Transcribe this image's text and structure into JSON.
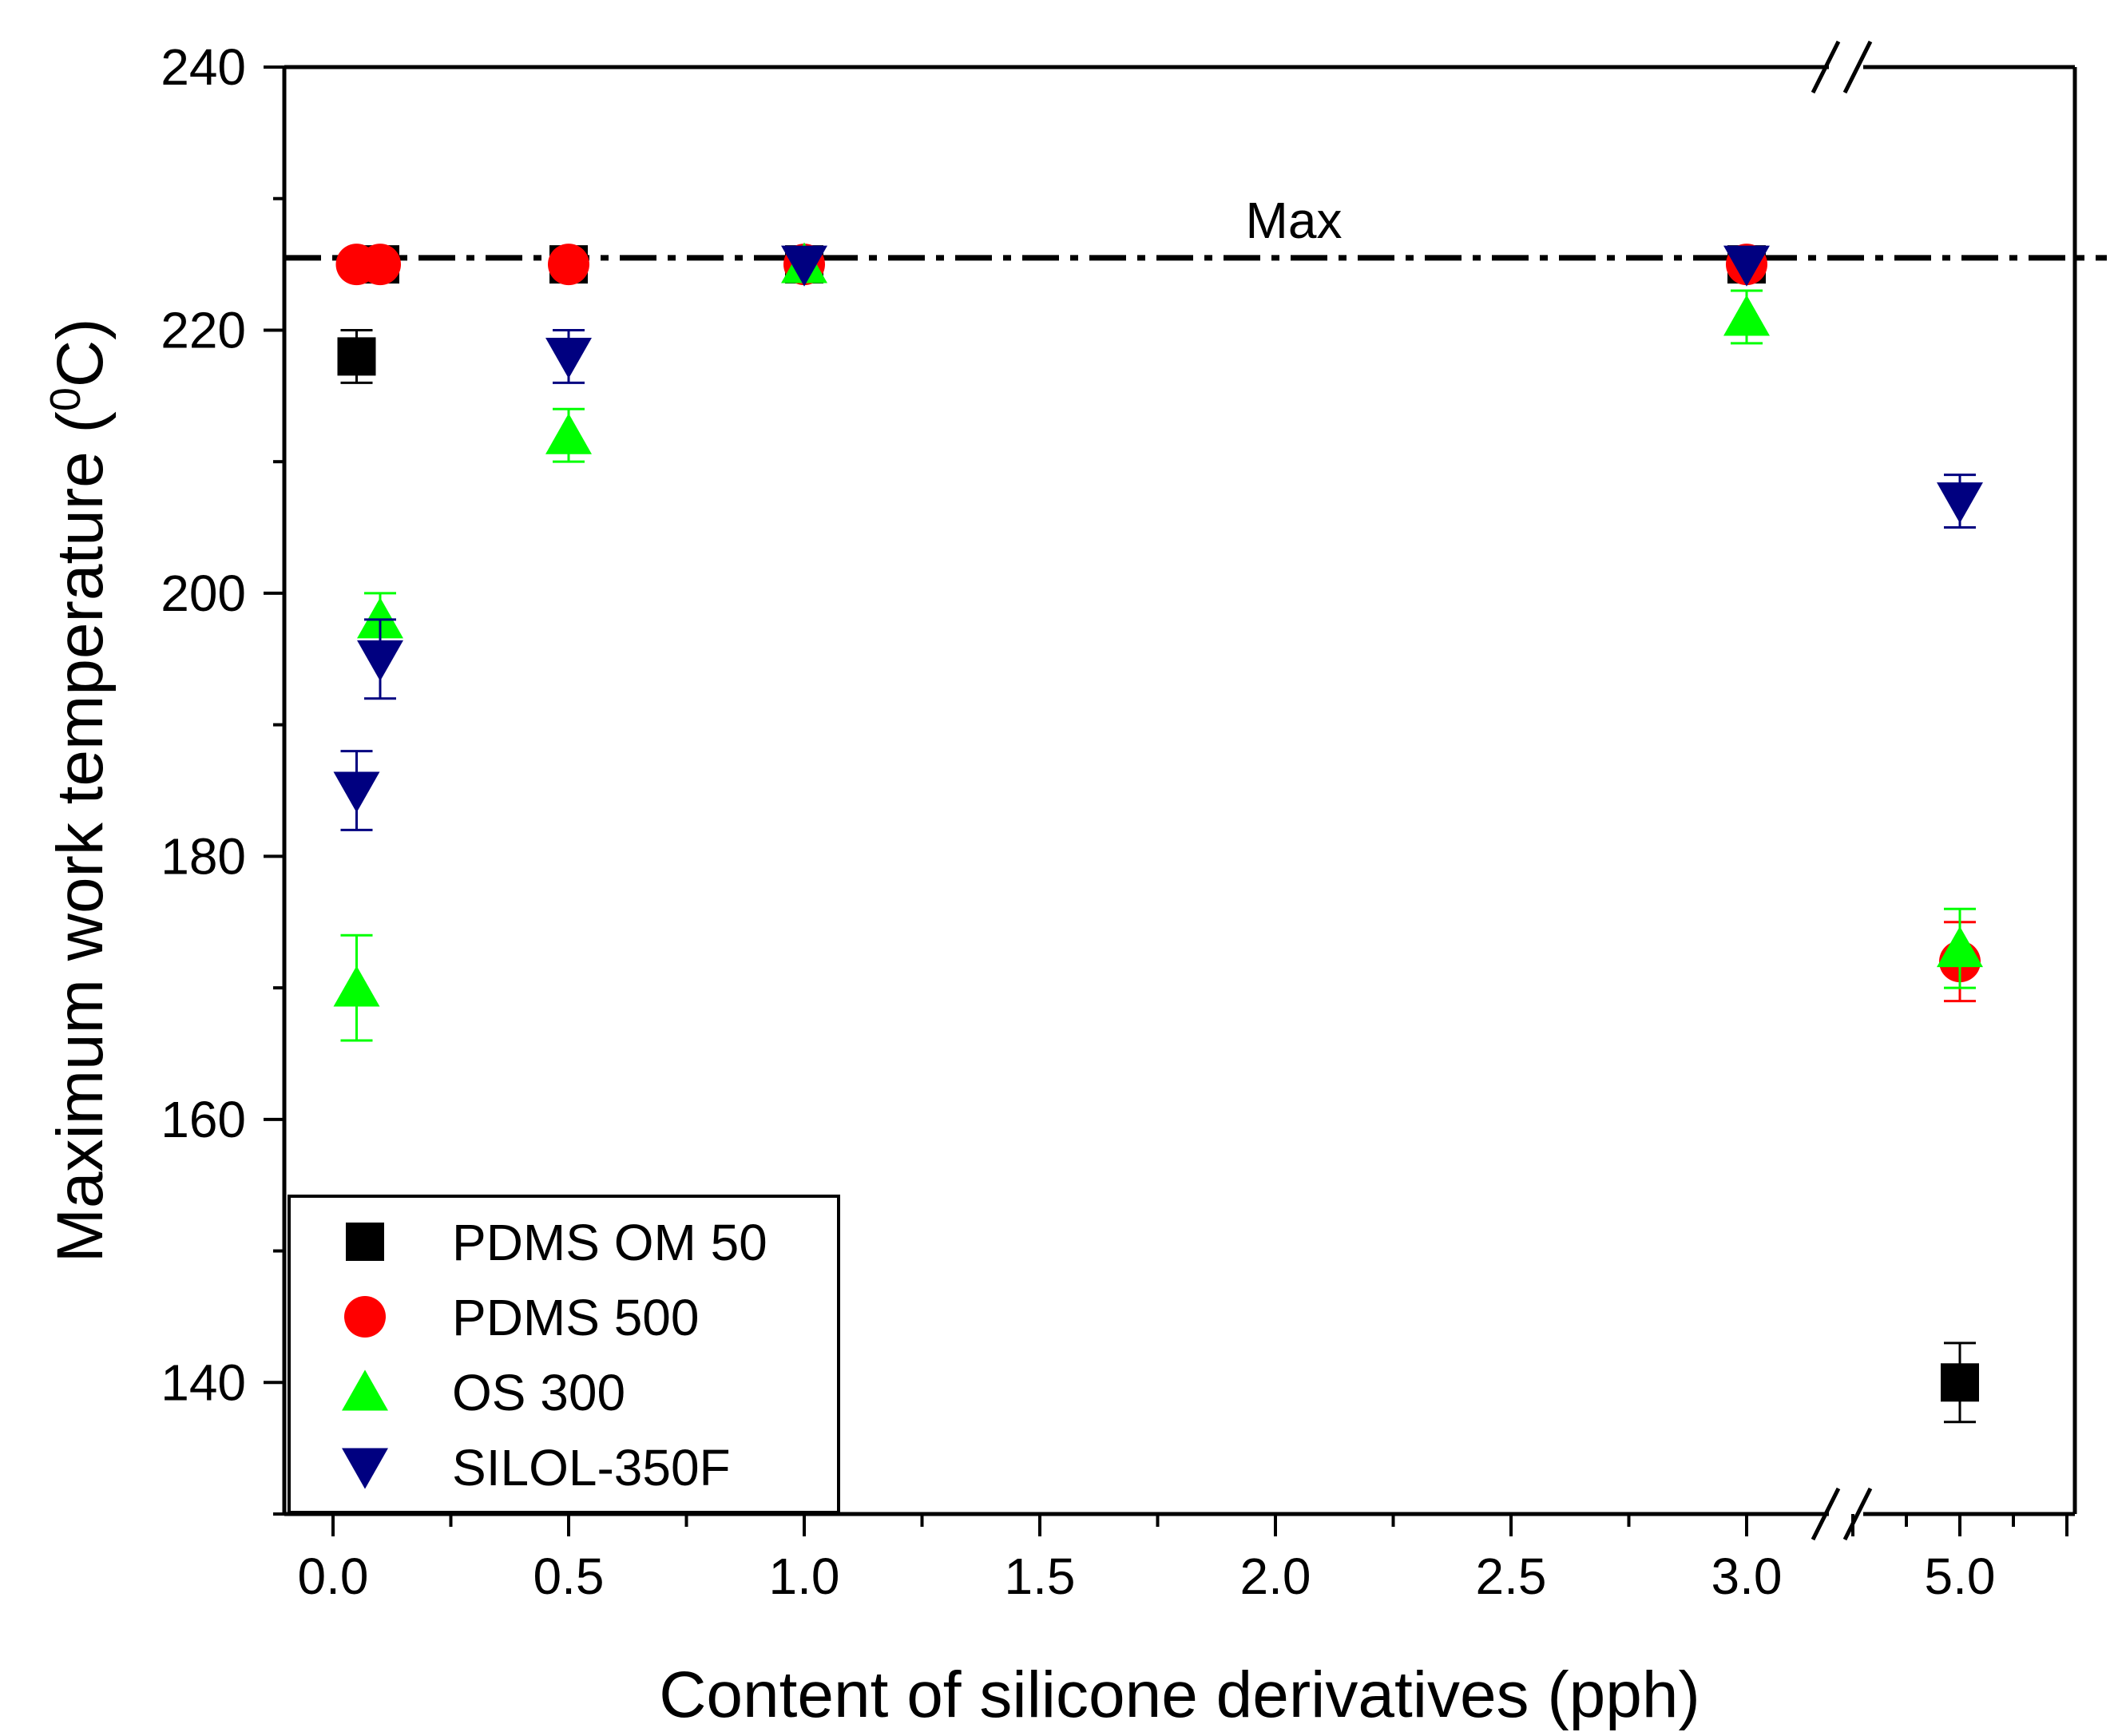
{
  "chart_data": {
    "type": "scatter",
    "title": "",
    "xlabel": "Content of silicone derivatives (pph)",
    "ylabel_main": "Maximum work temperature (",
    "ylabel_sup": "0",
    "ylabel_end": "C)",
    "ylim": [
      130,
      240
    ],
    "y_ticks": [
      140,
      160,
      180,
      200,
      220,
      240
    ],
    "x_ticks": [
      "0.0",
      "0.5",
      "1.0",
      "1.5",
      "2.0",
      "2.5",
      "3.0",
      "5.0"
    ],
    "x_tick_values": [
      0.0,
      0.5,
      1.0,
      1.5,
      2.0,
      2.5,
      3.0,
      5.0
    ],
    "axis_break": "between 3.0 and 5.0",
    "reference_line": {
      "label": "Max",
      "value": 225.5,
      "style": "dash-dot"
    },
    "legend_position": "bottom-left",
    "series": [
      {
        "name": "PDMS OM 50",
        "marker": "square",
        "color": "#000000",
        "points": [
          {
            "x": 0.05,
            "y": 218,
            "err": 2
          },
          {
            "x": 0.1,
            "y": 225,
            "err": 0
          },
          {
            "x": 0.5,
            "y": 225,
            "err": 0
          },
          {
            "x": 1.0,
            "y": 225,
            "err": 0
          },
          {
            "x": 3.0,
            "y": 225,
            "err": 0
          },
          {
            "x": 5.0,
            "y": 140,
            "err": 3
          }
        ]
      },
      {
        "name": "PDMS 500",
        "marker": "circle",
        "color": "#ff0000",
        "points": [
          {
            "x": 0.05,
            "y": 225,
            "err": 0
          },
          {
            "x": 0.1,
            "y": 225,
            "err": 0
          },
          {
            "x": 0.5,
            "y": 225,
            "err": 0
          },
          {
            "x": 1.0,
            "y": 225,
            "err": 0
          },
          {
            "x": 3.0,
            "y": 225,
            "err": 0
          },
          {
            "x": 5.0,
            "y": 172,
            "err": 3
          }
        ]
      },
      {
        "name": "OS 300",
        "marker": "triangle-up",
        "color": "#00ff00",
        "points": [
          {
            "x": 0.05,
            "y": 170,
            "err": 4
          },
          {
            "x": 0.1,
            "y": 198,
            "err": 2
          },
          {
            "x": 0.5,
            "y": 212,
            "err": 2
          },
          {
            "x": 1.0,
            "y": 225,
            "err": 0
          },
          {
            "x": 3.0,
            "y": 221,
            "err": 2
          },
          {
            "x": 5.0,
            "y": 173,
            "err": 3
          }
        ]
      },
      {
        "name": "SILOL-350F",
        "marker": "triangle-down",
        "color": "#000080",
        "points": [
          {
            "x": 0.05,
            "y": 185,
            "err": 3
          },
          {
            "x": 0.1,
            "y": 195,
            "err": 3
          },
          {
            "x": 0.5,
            "y": 218,
            "err": 2
          },
          {
            "x": 1.0,
            "y": 225,
            "err": 0
          },
          {
            "x": 3.0,
            "y": 225,
            "err": 0
          },
          {
            "x": 5.0,
            "y": 207,
            "err": 2
          }
        ]
      }
    ]
  }
}
